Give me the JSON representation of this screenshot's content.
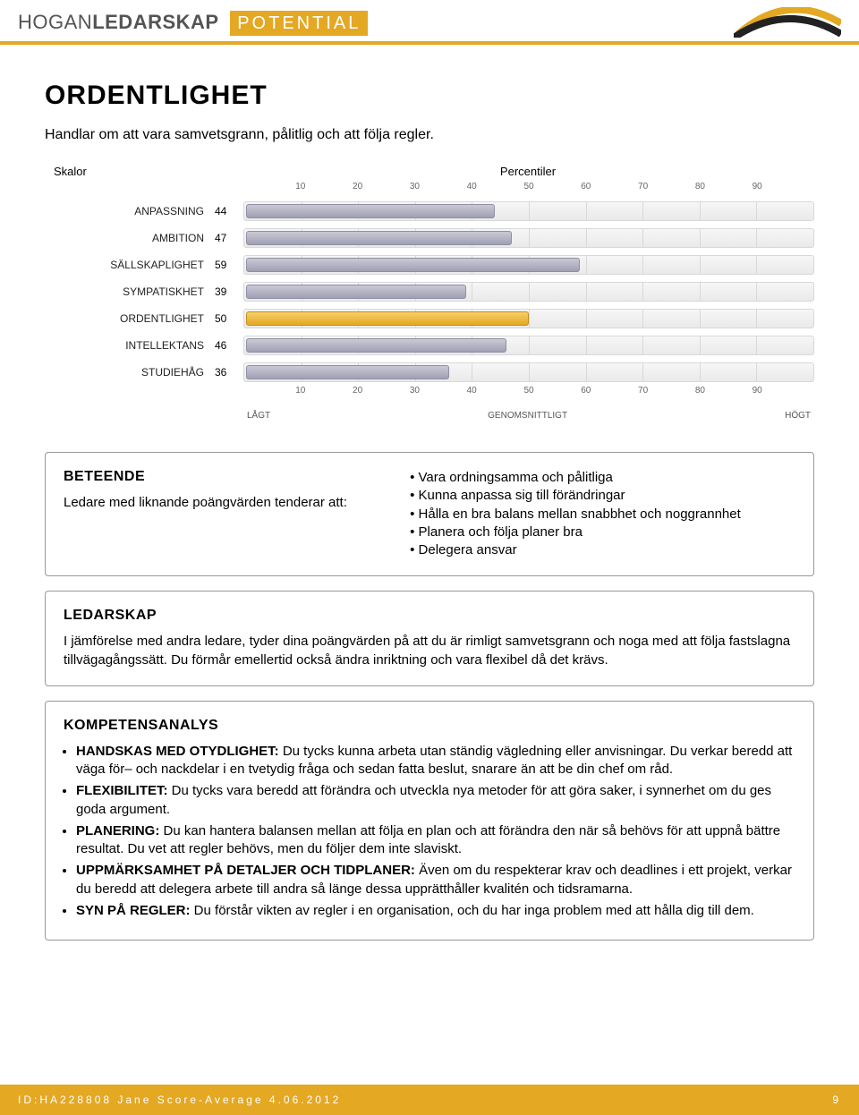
{
  "header": {
    "brand_light": "HOGAN",
    "brand_bold": "LEDARSKAP",
    "badge": "POTENTIAL"
  },
  "page": {
    "title": "ORDENTLIGHET",
    "subtitle": "Handlar om att vara samvetsgrann, pålitlig och att följa regler."
  },
  "chart": {
    "skalor_label": "Skalor",
    "percentiler_label": "Percentiler",
    "ticks": [
      10,
      20,
      30,
      40,
      50,
      60,
      70,
      80,
      90
    ],
    "xmax": 100,
    "legend": {
      "low": "LÅGT",
      "mid": "GENOMSNITTLIGT",
      "high": "HÖGT"
    },
    "track_bg_top": "#f6f6f6",
    "track_bg_bottom": "#eaeaea",
    "track_border": "#d8d8d8",
    "bar_color_top": "#c9c9d6",
    "bar_color_bottom": "#9f9fb3",
    "bar_border": "#8f8fa6",
    "highlight_top": "#f5d069",
    "highlight_bottom": "#e4a823",
    "highlight_border": "#c68f17",
    "rows": [
      {
        "label": "ANPASSNING",
        "value": 44,
        "highlight": false
      },
      {
        "label": "AMBITION",
        "value": 47,
        "highlight": false
      },
      {
        "label": "SÄLLSKAPLIGHET",
        "value": 59,
        "highlight": false
      },
      {
        "label": "SYMPATISKHET",
        "value": 39,
        "highlight": false
      },
      {
        "label": "ORDENTLIGHET",
        "value": 50,
        "highlight": true
      },
      {
        "label": "INTELLEKTANS",
        "value": 46,
        "highlight": false
      },
      {
        "label": "STUDIEHÅG",
        "value": 36,
        "highlight": false
      }
    ]
  },
  "beteende": {
    "heading": "BETEENDE",
    "intro": "Ledare med liknande poängvärden tenderar att:",
    "items": [
      "Vara ordningsamma och pålitliga",
      "Kunna anpassa sig till förändringar",
      "Hålla en bra balans mellan snabbhet och noggrannhet",
      "Planera och följa planer bra",
      "Delegera ansvar"
    ]
  },
  "ledarskap": {
    "heading": "LEDARSKAP",
    "text": "I jämförelse med andra ledare, tyder dina poängvärden på att du är rimligt samvetsgrann och noga med att följa fastslagna tillvägagångssätt. Du förmår emellertid också ändra inriktning och vara flexibel då det krävs."
  },
  "kompetens": {
    "heading": "KOMPETENSANALYS",
    "items": [
      {
        "lead": "HANDSKAS MED OTYDLIGHET:",
        "text": " Du tycks kunna arbeta utan ständig vägledning eller anvisningar. Du verkar beredd att väga för– och nackdelar i en tvetydig fråga och sedan fatta beslut, snarare än att be din chef om råd."
      },
      {
        "lead": "FLEXIBILITET:",
        "text": " Du tycks vara beredd att förändra och utveckla nya metoder för att göra saker, i synnerhet om du ges goda argument."
      },
      {
        "lead": "PLANERING:",
        "text": " Du kan hantera balansen mellan att följa en plan och att förändra den när så behövs för att uppnå bättre resultat. Du vet att regler behövs, men du följer dem inte slaviskt."
      },
      {
        "lead": "UPPMÄRKSAMHET PÅ DETALJER OCH TIDPLANER:",
        "text": " Även om du respekterar krav och deadlines i ett projekt, verkar du beredd att delegera arbete till andra så länge dessa upprätthåller kvalitén och tidsramarna."
      },
      {
        "lead": "SYN PÅ REGLER:",
        "text": " Du förstår vikten av regler i en organisation, och du har inga problem med att hålla dig till dem."
      }
    ]
  },
  "footer": {
    "id_line": "ID:HA228808 Jane Score-Average 4.06.2012",
    "page_number": "9"
  },
  "colors": {
    "accent": "#e4a823",
    "text": "#000000",
    "header_text": "#545454",
    "box_border": "#999999",
    "background": "#ffffff"
  }
}
